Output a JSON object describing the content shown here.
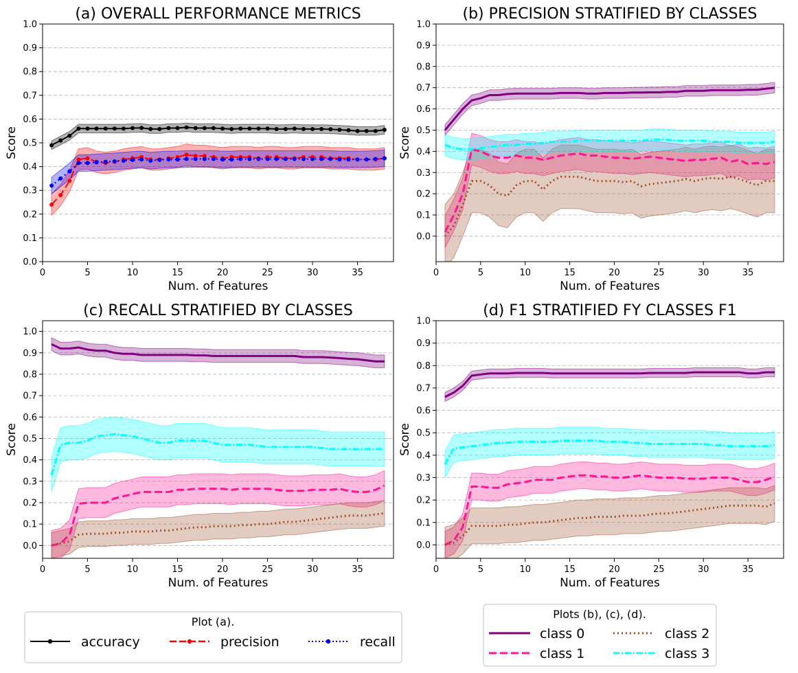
{
  "chart_data": [
    {
      "type": "line",
      "title": "(a) OVERALL PERFORMANCE METRICS",
      "xlabel": "Num. of Features",
      "ylabel": "Score",
      "xlim": [
        0,
        39
      ],
      "ylim": [
        0.0,
        1.0
      ],
      "xticks": [
        "0",
        "5",
        "10",
        "15",
        "20",
        "25",
        "30",
        "35"
      ],
      "yticks": [
        "0.0",
        "0.1",
        "0.2",
        "0.3",
        "0.4",
        "0.5",
        "0.6",
        "0.7",
        "0.8",
        "0.9",
        "1.0"
      ],
      "series": [
        {
          "name": "accuracy",
          "color": "#000000",
          "dash": "solid",
          "marker": true,
          "band": 0.018,
          "values": [
            0.49,
            0.51,
            0.53,
            0.56,
            0.56,
            0.56,
            0.56,
            0.56,
            0.56,
            0.562,
            0.563,
            0.558,
            0.558,
            0.562,
            0.562,
            0.565,
            0.562,
            0.562,
            0.562,
            0.56,
            0.558,
            0.56,
            0.56,
            0.56,
            0.56,
            0.558,
            0.558,
            0.56,
            0.558,
            0.558,
            0.558,
            0.557,
            0.555,
            0.553,
            0.55,
            0.55,
            0.55,
            0.555
          ]
        },
        {
          "name": "precision",
          "color": "#ff0000",
          "dash": "dashed",
          "marker": true,
          "band": 0.045,
          "values": [
            0.24,
            0.28,
            0.34,
            0.43,
            0.435,
            0.42,
            0.415,
            0.42,
            0.43,
            0.435,
            0.44,
            0.43,
            0.43,
            0.435,
            0.44,
            0.45,
            0.445,
            0.445,
            0.44,
            0.435,
            0.44,
            0.44,
            0.44,
            0.435,
            0.44,
            0.44,
            0.435,
            0.435,
            0.44,
            0.44,
            0.44,
            0.435,
            0.435,
            0.435,
            0.43,
            0.43,
            0.43,
            0.435
          ]
        },
        {
          "name": "recall",
          "color": "#0000ff",
          "dash": "dotted",
          "marker": true,
          "band": 0.035,
          "values": [
            0.32,
            0.35,
            0.38,
            0.415,
            0.415,
            0.418,
            0.42,
            0.422,
            0.425,
            0.428,
            0.43,
            0.425,
            0.428,
            0.43,
            0.43,
            0.432,
            0.432,
            0.432,
            0.432,
            0.43,
            0.43,
            0.432,
            0.432,
            0.432,
            0.432,
            0.432,
            0.432,
            0.432,
            0.432,
            0.432,
            0.432,
            0.432,
            0.43,
            0.43,
            0.43,
            0.43,
            0.432,
            0.435
          ]
        }
      ]
    },
    {
      "type": "line",
      "title": "(b) PRECISION STRATIFIED BY CLASSES",
      "xlabel": "Num. of Features",
      "ylabel": "Score",
      "xlim": [
        0,
        39
      ],
      "ylim": [
        -0.12,
        1.0
      ],
      "xticks": [
        "0",
        "5",
        "10",
        "15",
        "20",
        "25",
        "30",
        "35"
      ],
      "yticks": [
        "0.0",
        "0.1",
        "0.2",
        "0.3",
        "0.4",
        "0.5",
        "0.6",
        "0.7",
        "0.8",
        "0.9",
        "1.0"
      ],
      "series": [
        {
          "name": "class 0",
          "color": "#800080",
          "dash": "solid",
          "band": 0.025,
          "values": [
            0.5,
            0.55,
            0.6,
            0.64,
            0.65,
            0.665,
            0.665,
            0.67,
            0.672,
            0.672,
            0.672,
            0.672,
            0.672,
            0.675,
            0.675,
            0.675,
            0.672,
            0.672,
            0.675,
            0.675,
            0.675,
            0.677,
            0.677,
            0.678,
            0.678,
            0.68,
            0.68,
            0.685,
            0.685,
            0.685,
            0.688,
            0.688,
            0.688,
            0.688,
            0.69,
            0.69,
            0.695,
            0.7
          ]
        },
        {
          "name": "class 1",
          "color": "#ff1493",
          "dash": "dashed",
          "band": 0.075,
          "values": [
            0.02,
            0.1,
            0.2,
            0.41,
            0.4,
            0.38,
            0.37,
            0.37,
            0.38,
            0.37,
            0.37,
            0.36,
            0.37,
            0.38,
            0.385,
            0.39,
            0.38,
            0.38,
            0.375,
            0.37,
            0.37,
            0.365,
            0.37,
            0.375,
            0.37,
            0.365,
            0.36,
            0.355,
            0.36,
            0.36,
            0.365,
            0.37,
            0.35,
            0.36,
            0.34,
            0.345,
            0.34,
            0.35
          ]
        },
        {
          "name": "class 2",
          "color": "#a0522d",
          "dash": "dotted",
          "band": 0.15,
          "values": [
            0.0,
            0.05,
            0.15,
            0.26,
            0.26,
            0.24,
            0.2,
            0.19,
            0.24,
            0.26,
            0.26,
            0.22,
            0.26,
            0.28,
            0.28,
            0.28,
            0.27,
            0.26,
            0.26,
            0.26,
            0.255,
            0.26,
            0.235,
            0.245,
            0.25,
            0.255,
            0.26,
            0.27,
            0.26,
            0.27,
            0.275,
            0.27,
            0.28,
            0.27,
            0.255,
            0.24,
            0.26,
            0.26
          ]
        },
        {
          "name": "class 3",
          "color": "#00ffff",
          "dash": "dashdot",
          "band": 0.05,
          "values": [
            0.43,
            0.415,
            0.41,
            0.41,
            0.415,
            0.42,
            0.425,
            0.43,
            0.43,
            0.435,
            0.435,
            0.44,
            0.445,
            0.445,
            0.445,
            0.45,
            0.45,
            0.45,
            0.45,
            0.45,
            0.45,
            0.45,
            0.45,
            0.455,
            0.455,
            0.455,
            0.45,
            0.45,
            0.45,
            0.45,
            0.445,
            0.445,
            0.445,
            0.44,
            0.44,
            0.44,
            0.44,
            0.445
          ]
        }
      ]
    },
    {
      "type": "line",
      "title": "(c) RECALL STRATIFIED BY CLASSES",
      "xlabel": "Num. of Features",
      "ylabel": "Score",
      "xlim": [
        0,
        39
      ],
      "ylim": [
        -0.06,
        1.05
      ],
      "xticks": [
        "0",
        "5",
        "10",
        "15",
        "20",
        "25",
        "30",
        "35"
      ],
      "yticks": [
        "0.0",
        "0.1",
        "0.2",
        "0.3",
        "0.4",
        "0.5",
        "0.6",
        "0.7",
        "0.8",
        "0.9",
        "1.0"
      ],
      "series": [
        {
          "name": "class 0",
          "color": "#800080",
          "dash": "solid",
          "band": 0.03,
          "values": [
            0.94,
            0.92,
            0.92,
            0.925,
            0.915,
            0.91,
            0.91,
            0.9,
            0.895,
            0.895,
            0.89,
            0.89,
            0.89,
            0.89,
            0.89,
            0.89,
            0.888,
            0.888,
            0.885,
            0.885,
            0.885,
            0.885,
            0.885,
            0.885,
            0.885,
            0.885,
            0.885,
            0.885,
            0.88,
            0.88,
            0.88,
            0.878,
            0.875,
            0.872,
            0.87,
            0.865,
            0.86,
            0.86
          ]
        },
        {
          "name": "class 1",
          "color": "#ff1493",
          "dash": "dashed",
          "band": 0.07,
          "values": [
            0.0,
            0.01,
            0.05,
            0.195,
            0.2,
            0.2,
            0.2,
            0.22,
            0.23,
            0.24,
            0.25,
            0.25,
            0.25,
            0.25,
            0.26,
            0.26,
            0.265,
            0.265,
            0.265,
            0.265,
            0.26,
            0.265,
            0.265,
            0.265,
            0.265,
            0.26,
            0.255,
            0.255,
            0.255,
            0.26,
            0.26,
            0.26,
            0.265,
            0.255,
            0.25,
            0.25,
            0.26,
            0.28
          ]
        },
        {
          "name": "class 2",
          "color": "#a0522d",
          "dash": "dotted",
          "band": 0.06,
          "values": [
            0.0,
            0.01,
            0.02,
            0.05,
            0.055,
            0.055,
            0.055,
            0.06,
            0.06,
            0.065,
            0.065,
            0.065,
            0.07,
            0.07,
            0.075,
            0.08,
            0.085,
            0.085,
            0.09,
            0.09,
            0.09,
            0.095,
            0.095,
            0.1,
            0.1,
            0.105,
            0.11,
            0.11,
            0.115,
            0.12,
            0.125,
            0.13,
            0.135,
            0.14,
            0.14,
            0.14,
            0.145,
            0.15
          ]
        },
        {
          "name": "class 3",
          "color": "#00ffff",
          "dash": "dashdot",
          "band": 0.08,
          "values": [
            0.33,
            0.47,
            0.48,
            0.48,
            0.49,
            0.51,
            0.515,
            0.52,
            0.515,
            0.51,
            0.5,
            0.49,
            0.48,
            0.48,
            0.49,
            0.49,
            0.49,
            0.49,
            0.48,
            0.47,
            0.47,
            0.47,
            0.47,
            0.465,
            0.46,
            0.46,
            0.46,
            0.46,
            0.46,
            0.46,
            0.455,
            0.45,
            0.45,
            0.45,
            0.45,
            0.45,
            0.45,
            0.45
          ]
        }
      ]
    },
    {
      "type": "line",
      "title": "(d) F1 STRATIFIED FY CLASSES F1",
      "xlabel": "Num. of Features",
      "ylabel": "Score",
      "xlim": [
        0,
        39
      ],
      "ylim": [
        -0.06,
        1.0
      ],
      "xticks": [
        "0",
        "5",
        "10",
        "15",
        "20",
        "25",
        "30",
        "35"
      ],
      "yticks": [
        "0.0",
        "0.1",
        "0.2",
        "0.3",
        "0.4",
        "0.5",
        "0.6",
        "0.7",
        "0.8",
        "0.9",
        "1.0"
      ],
      "series": [
        {
          "name": "class 0",
          "color": "#800080",
          "dash": "solid",
          "band": 0.02,
          "values": [
            0.66,
            0.68,
            0.71,
            0.755,
            0.76,
            0.765,
            0.765,
            0.765,
            0.767,
            0.767,
            0.767,
            0.767,
            0.765,
            0.765,
            0.765,
            0.765,
            0.765,
            0.765,
            0.765,
            0.765,
            0.765,
            0.765,
            0.765,
            0.767,
            0.767,
            0.767,
            0.767,
            0.767,
            0.77,
            0.77,
            0.77,
            0.77,
            0.77,
            0.77,
            0.765,
            0.765,
            0.77,
            0.77
          ]
        },
        {
          "name": "class 1",
          "color": "#ff1493",
          "dash": "dashed",
          "band": 0.06,
          "values": [
            0.0,
            0.02,
            0.08,
            0.26,
            0.26,
            0.255,
            0.255,
            0.27,
            0.275,
            0.28,
            0.29,
            0.29,
            0.29,
            0.3,
            0.305,
            0.31,
            0.31,
            0.305,
            0.305,
            0.3,
            0.3,
            0.305,
            0.31,
            0.305,
            0.3,
            0.3,
            0.3,
            0.295,
            0.295,
            0.295,
            0.3,
            0.3,
            0.3,
            0.29,
            0.28,
            0.28,
            0.29,
            0.305
          ]
        },
        {
          "name": "class 2",
          "color": "#a0522d",
          "dash": "dotted",
          "band": 0.08,
          "values": [
            0.0,
            0.01,
            0.04,
            0.085,
            0.085,
            0.085,
            0.085,
            0.09,
            0.09,
            0.095,
            0.1,
            0.1,
            0.105,
            0.11,
            0.115,
            0.12,
            0.12,
            0.125,
            0.125,
            0.125,
            0.13,
            0.13,
            0.13,
            0.135,
            0.14,
            0.14,
            0.145,
            0.15,
            0.155,
            0.16,
            0.165,
            0.17,
            0.175,
            0.175,
            0.175,
            0.175,
            0.17,
            0.185
          ]
        },
        {
          "name": "class 3",
          "color": "#00ffff",
          "dash": "dashdot",
          "band": 0.06,
          "values": [
            0.36,
            0.43,
            0.435,
            0.44,
            0.445,
            0.45,
            0.455,
            0.455,
            0.46,
            0.46,
            0.46,
            0.46,
            0.46,
            0.465,
            0.465,
            0.465,
            0.465,
            0.465,
            0.46,
            0.46,
            0.46,
            0.455,
            0.455,
            0.45,
            0.45,
            0.45,
            0.45,
            0.45,
            0.45,
            0.45,
            0.445,
            0.445,
            0.44,
            0.44,
            0.44,
            0.44,
            0.44,
            0.445
          ]
        }
      ]
    }
  ],
  "legend_a": {
    "title": "Plot (a).",
    "entries": [
      "accuracy",
      "precision",
      "recall"
    ]
  },
  "legend_bcd": {
    "title": "Plots (b), (c), (d).",
    "entries": [
      "class 0",
      "class 2",
      "class 1",
      "class 3"
    ]
  }
}
